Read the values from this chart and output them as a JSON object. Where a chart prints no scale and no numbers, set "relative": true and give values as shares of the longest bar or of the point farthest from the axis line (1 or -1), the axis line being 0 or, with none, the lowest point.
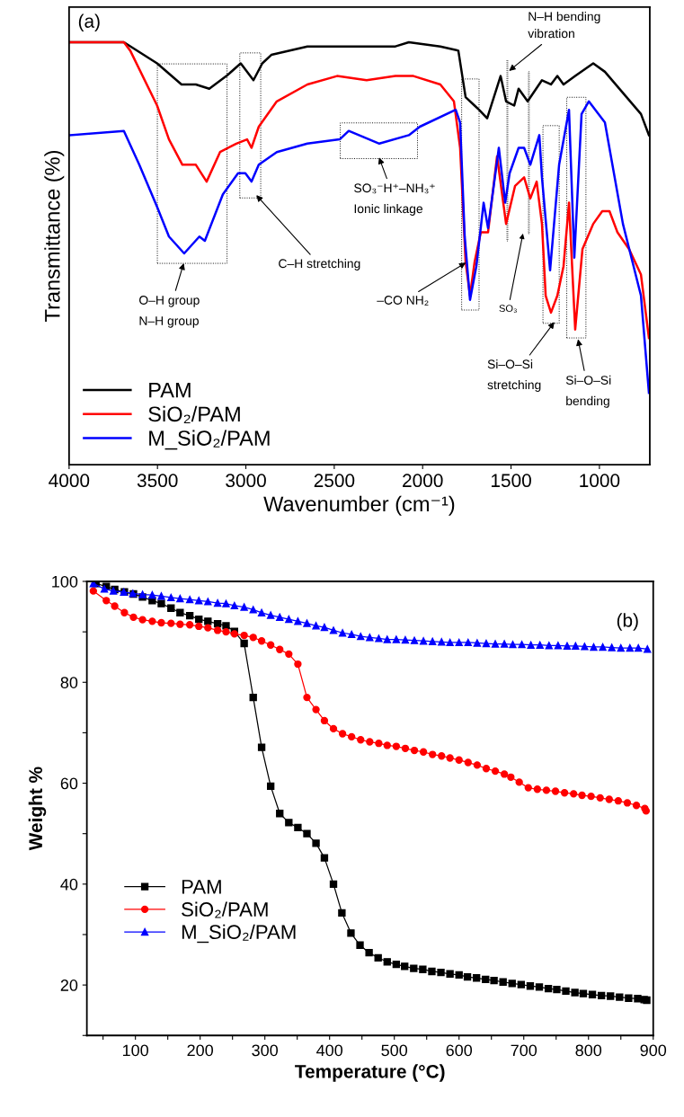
{
  "chart_data": [
    {
      "type": "line",
      "relative": true,
      "xlabel": "Wavenumber (cm⁻¹)",
      "ylabel": "Transmittance (%)",
      "xlim": [
        4000,
        715
      ],
      "xticks": [
        4000,
        3500,
        3000,
        2500,
        2000,
        1500,
        1000
      ],
      "tick_labels": "x",
      "legend": "lower left",
      "grid": false,
      "marker": "none",
      "line_style": "solid",
      "annotations": [
        "(a)",
        "O–H group\nN–H group",
        "C–H stretching",
        "SO₃⁻H⁺–NH₃⁺\nIonic linkage",
        "–CO NH₂",
        "SO₃",
        "Si–O–Si\nstretching",
        "Si–O–Si\nbending",
        "N–H bending\nvibration"
      ],
      "series": [
        {
          "name": "PAM",
          "color": "#000000",
          "x": [
            3995,
            3690,
            3502,
            3364,
            3283,
            3207,
            3110,
            3029,
            2957,
            2907,
            2856,
            2652,
            2317,
            2154,
            2078,
            1900,
            1798,
            1757,
            1706,
            1681,
            1635,
            1559,
            1528,
            1482,
            1457,
            1406,
            1325,
            1274,
            1238,
            1203,
            1137,
            1035,
            969,
            867,
            765,
            720
          ],
          "values": [
            1.0,
            1.0,
            0.95,
            0.9,
            0.9,
            0.89,
            0.92,
            0.95,
            0.91,
            0.95,
            0.97,
            0.99,
            0.99,
            0.99,
            1.0,
            0.99,
            0.98,
            0.87,
            0.85,
            0.84,
            0.82,
            0.92,
            0.86,
            0.85,
            0.89,
            0.86,
            0.91,
            0.9,
            0.92,
            0.9,
            0.92,
            0.95,
            0.93,
            0.88,
            0.83,
            0.78
          ]
        },
        {
          "name": "SiO₂/PAM",
          "color": "#ff0000",
          "x": [
            3995,
            3690,
            3654,
            3502,
            3435,
            3359,
            3283,
            3222,
            3146,
            3054,
            2993,
            2968,
            2927,
            2825,
            2652,
            2484,
            2317,
            2154,
            2052,
            1900,
            1823,
            1788,
            1757,
            1732,
            1706,
            1671,
            1630,
            1579,
            1528,
            1477,
            1426,
            1391,
            1355,
            1325,
            1304,
            1274,
            1238,
            1203,
            1172,
            1137,
            1096,
            1035,
            984,
            943,
            898,
            832,
            765,
            720
          ],
          "values": [
            1.0,
            1.0,
            0.98,
            0.85,
            0.77,
            0.71,
            0.71,
            0.67,
            0.74,
            0.76,
            0.77,
            0.75,
            0.8,
            0.86,
            0.9,
            0.92,
            0.91,
            0.92,
            0.92,
            0.9,
            0.86,
            0.75,
            0.48,
            0.4,
            0.48,
            0.55,
            0.55,
            0.73,
            0.57,
            0.66,
            0.68,
            0.63,
            0.67,
            0.57,
            0.4,
            0.36,
            0.4,
            0.47,
            0.62,
            0.32,
            0.51,
            0.57,
            0.6,
            0.6,
            0.55,
            0.51,
            0.45,
            0.3
          ]
        },
        {
          "name": "M_SiO₂/PAM",
          "color": "#0000ff",
          "x": [
            3995,
            3690,
            3603,
            3502,
            3435,
            3349,
            3263,
            3232,
            3130,
            3044,
            3003,
            2968,
            2927,
            2825,
            2652,
            2469,
            2418,
            2245,
            2078,
            2016,
            1813,
            1788,
            1762,
            1732,
            1696,
            1655,
            1630,
            1569,
            1533,
            1508,
            1457,
            1426,
            1391,
            1340,
            1325,
            1279,
            1228,
            1172,
            1142,
            1101,
            1060,
            969,
            867,
            765,
            720
          ],
          "values": [
            0.78,
            0.79,
            0.71,
            0.61,
            0.54,
            0.5,
            0.54,
            0.53,
            0.64,
            0.69,
            0.69,
            0.67,
            0.71,
            0.74,
            0.76,
            0.77,
            0.79,
            0.76,
            0.78,
            0.8,
            0.84,
            0.81,
            0.54,
            0.39,
            0.47,
            0.62,
            0.56,
            0.75,
            0.62,
            0.69,
            0.75,
            0.75,
            0.71,
            0.78,
            0.68,
            0.46,
            0.71,
            0.84,
            0.49,
            0.83,
            0.86,
            0.81,
            0.57,
            0.4,
            0.17
          ]
        }
      ]
    },
    {
      "type": "line",
      "xlabel": "Temperature (°C)",
      "ylabel": "Weight %",
      "xlim": [
        25,
        900
      ],
      "ylim": [
        10,
        100
      ],
      "xticks": [
        {
          "value": 50,
          "label": null
        },
        100,
        {
          "value": 150,
          "label": null
        },
        200,
        {
          "value": 250,
          "label": null
        },
        300,
        {
          "value": 350,
          "label": null
        },
        400,
        {
          "value": 450,
          "label": null
        },
        500,
        {
          "value": 550,
          "label": null
        },
        600,
        {
          "value": 650,
          "label": null
        },
        700,
        {
          "value": 750,
          "label": null
        },
        800,
        {
          "value": 850,
          "label": null
        },
        900
      ],
      "yticks": [
        {
          "value": 10,
          "label": null
        },
        20,
        {
          "value": 30,
          "label": null
        },
        40,
        {
          "value": 50,
          "label": null
        },
        60,
        {
          "value": 70,
          "label": null
        },
        80,
        {
          "value": 90,
          "label": null
        },
        100
      ],
      "legend": "lower left",
      "grid": false,
      "line_style": "solid",
      "annotations": [
        "(b)"
      ],
      "series": [
        {
          "name": "PAM",
          "color": "#000000",
          "marker": "square",
          "x": [
            39,
            55,
            68,
            83,
            97,
            111,
            126,
            140,
            155,
            169,
            184,
            198,
            212,
            227,
            240,
            253,
            268,
            282,
            295,
            309,
            323,
            337,
            351,
            365,
            379,
            392,
            406,
            419,
            433,
            447,
            461,
            475,
            489,
            503,
            516,
            530,
            544,
            558,
            572,
            586,
            600,
            613,
            627,
            641,
            654,
            668,
            682,
            696,
            710,
            724,
            738,
            751,
            765,
            779,
            792,
            806,
            820,
            834,
            848,
            862,
            876,
            886,
            890
          ],
          "values": [
            99.6,
            99.0,
            98.4,
            97.9,
            97.5,
            96.9,
            96.2,
            95.6,
            94.7,
            93.8,
            93.2,
            92.5,
            92.1,
            91.6,
            91.2,
            90.1,
            87.7,
            77.0,
            67.1,
            59.4,
            54.0,
            52.2,
            51.2,
            50.0,
            48.1,
            45.2,
            40.0,
            34.3,
            30.3,
            27.9,
            26.4,
            25.4,
            24.6,
            24.1,
            23.7,
            23.3,
            23.1,
            22.7,
            22.5,
            22.2,
            22.0,
            21.6,
            21.4,
            21.1,
            20.9,
            20.6,
            20.3,
            20.1,
            19.8,
            19.6,
            19.3,
            19.1,
            18.8,
            18.5,
            18.3,
            18.1,
            17.9,
            17.8,
            17.6,
            17.4,
            17.3,
            17.1,
            17.0
          ]
        },
        {
          "name": "SiO₂/PAM",
          "color": "#ff0000",
          "marker": "circle",
          "x": [
            35,
            55,
            68,
            83,
            97,
            111,
            126,
            140,
            155,
            169,
            184,
            198,
            212,
            227,
            240,
            253,
            268,
            282,
            295,
            309,
            323,
            337,
            351,
            365,
            379,
            392,
            406,
            420,
            434,
            448,
            462,
            476,
            489,
            503,
            517,
            531,
            545,
            559,
            573,
            586,
            600,
            614,
            628,
            642,
            656,
            670,
            680,
            693,
            707,
            721,
            735,
            749,
            763,
            777,
            790,
            804,
            818,
            832,
            846,
            860,
            874,
            887,
            889
          ],
          "values": [
            98.1,
            96.2,
            95.1,
            93.8,
            92.9,
            92.4,
            92.1,
            91.8,
            91.7,
            91.5,
            91.4,
            91.1,
            90.8,
            90.3,
            90.0,
            89.6,
            89.3,
            88.9,
            88.2,
            87.4,
            86.5,
            85.6,
            83.6,
            77.0,
            74.6,
            72.4,
            70.8,
            69.8,
            69.2,
            68.6,
            68.2,
            67.9,
            67.5,
            67.3,
            66.9,
            66.5,
            66.2,
            65.7,
            65.4,
            65.0,
            64.6,
            64.1,
            63.6,
            62.9,
            62.4,
            61.8,
            61.2,
            60.2,
            59.1,
            58.8,
            58.6,
            58.4,
            58.1,
            57.9,
            57.6,
            57.4,
            57.1,
            56.8,
            56.5,
            56.1,
            55.6,
            55.0,
            54.5
          ]
        },
        {
          "name": "M_SiO₂/PAM",
          "color": "#0000ff",
          "marker": "triangle",
          "x": [
            35,
            52,
            66,
            82,
            96,
            111,
            126,
            140,
            155,
            169,
            184,
            198,
            212,
            227,
            240,
            253,
            268,
            282,
            295,
            309,
            323,
            337,
            351,
            365,
            379,
            392,
            406,
            420,
            434,
            448,
            462,
            476,
            489,
            503,
            517,
            531,
            545,
            559,
            573,
            586,
            600,
            614,
            628,
            642,
            656,
            670,
            683,
            697,
            711,
            725,
            739,
            753,
            767,
            780,
            794,
            808,
            822,
            836,
            850,
            864,
            877,
            891
          ],
          "values": [
            99.6,
            98.5,
            98.1,
            97.9,
            97.6,
            97.4,
            97.3,
            97.1,
            96.8,
            96.6,
            96.4,
            96.2,
            96.0,
            95.7,
            95.6,
            95.2,
            94.9,
            94.4,
            93.8,
            93.3,
            92.9,
            92.5,
            92.1,
            91.7,
            91.2,
            90.9,
            90.3,
            89.8,
            89.5,
            89.1,
            88.9,
            88.7,
            88.5,
            88.5,
            88.4,
            88.3,
            88.2,
            88.1,
            88.0,
            87.9,
            87.9,
            87.9,
            87.8,
            87.7,
            87.6,
            87.6,
            87.5,
            87.5,
            87.4,
            87.4,
            87.3,
            87.3,
            87.2,
            87.2,
            87.1,
            87.0,
            87.0,
            86.9,
            86.8,
            86.8,
            86.8,
            86.6
          ]
        }
      ]
    }
  ]
}
